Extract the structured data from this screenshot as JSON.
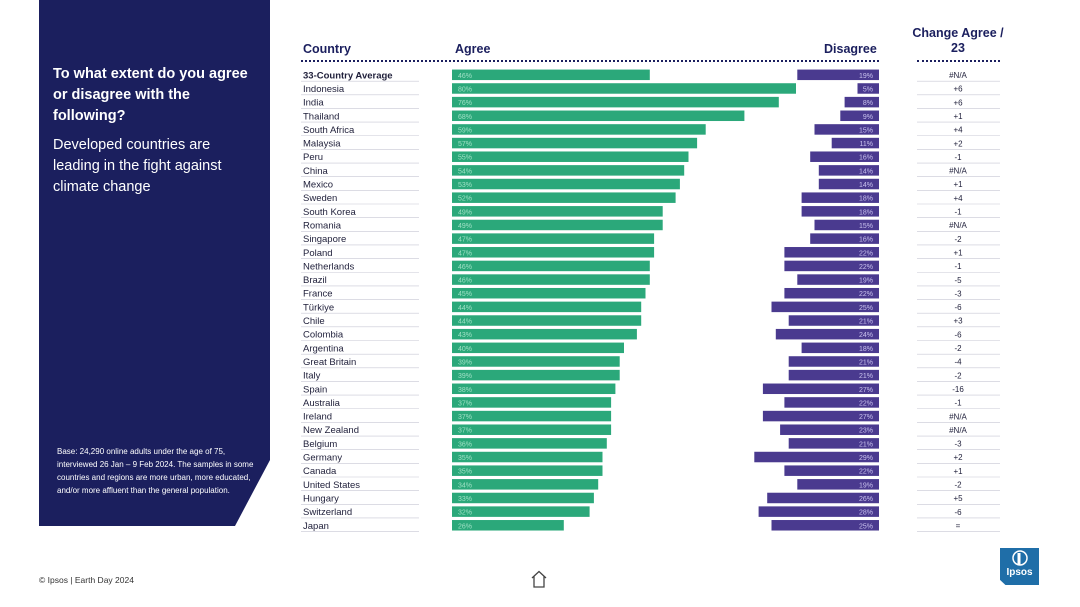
{
  "question": "To what extent do you agree or disagree with the following?",
  "statement": "Developed countries are leading in the fight against climate change",
  "base_note": "Base: 24,290 online adults under the age of 75, interviewed 26 Jan – 9 Feb 2024. The samples in some countries and regions are more urban, more educated, and/or more affluent than the general population.",
  "footer": "© Ipsos | Earth Day 2024",
  "logo_text": "Ipsos",
  "colors": {
    "agree": "#2ba87a",
    "disagree": "#4a3a8f",
    "panel": "#1b1f5e"
  },
  "chart_data": {
    "type": "bar",
    "orientation": "horizontal-diverging",
    "headers": {
      "country": "Country",
      "agree": "Agree",
      "disagree": "Disagree",
      "change": "Change Agree / 23"
    },
    "categories": [
      "33-Country Average",
      "Indonesia",
      "India",
      "Thailand",
      "South Africa",
      "Malaysia",
      "Peru",
      "China",
      "Mexico",
      "Sweden",
      "South Korea",
      "Romania",
      "Singapore",
      "Poland",
      "Netherlands",
      "Brazil",
      "France",
      "Türkiye",
      "Chile",
      "Colombia",
      "Argentina",
      "Great Britain",
      "Italy",
      "Spain",
      "Australia",
      "Ireland",
      "New Zealand",
      "Belgium",
      "Germany",
      "Canada",
      "United States",
      "Hungary",
      "Switzerland",
      "Japan"
    ],
    "series": [
      {
        "name": "Agree",
        "values": [
          46,
          80,
          76,
          68,
          59,
          57,
          55,
          54,
          53,
          52,
          49,
          49,
          47,
          47,
          46,
          46,
          45,
          44,
          44,
          43,
          40,
          39,
          39,
          38,
          37,
          37,
          37,
          36,
          35,
          35,
          34,
          33,
          32,
          26
        ]
      },
      {
        "name": "Disagree",
        "values": [
          19,
          5,
          8,
          9,
          15,
          11,
          16,
          14,
          14,
          18,
          18,
          15,
          16,
          22,
          22,
          19,
          22,
          25,
          21,
          24,
          18,
          21,
          21,
          27,
          22,
          27,
          23,
          21,
          29,
          22,
          19,
          26,
          28,
          25
        ]
      }
    ],
    "agree_labels": [
      "46%",
      "80%",
      "76%",
      "68%",
      "59%",
      "57%",
      "55%",
      "54%",
      "53%",
      "52%",
      "49%",
      "49%",
      "47%",
      "47%",
      "46%",
      "46%",
      "45%",
      "44%",
      "44%",
      "43%",
      "40%",
      "39%",
      "39%",
      "38%",
      "37%",
      "37%",
      "37%",
      "36%",
      "35%",
      "35%",
      "34%",
      "33%",
      "32%",
      "26%"
    ],
    "disagree_labels": [
      "19%",
      "5%",
      "8%",
      "9%",
      "15%",
      "11%",
      "16%",
      "14%",
      "14%",
      "18%",
      "18%",
      "15%",
      "16%",
      "22%",
      "22%",
      "19%",
      "22%",
      "25%",
      "21%",
      "24%",
      "18%",
      "21%",
      "21%",
      "27%",
      "22%",
      "27%",
      "23%",
      "21%",
      "29%",
      "22%",
      "19%",
      "26%",
      "28%",
      "25%"
    ],
    "change": [
      "#N/A",
      "+6",
      "+6",
      "+1",
      "+4",
      "+2",
      "-1",
      "#N/A",
      "+1",
      "+4",
      "-1",
      "#N/A",
      "-2",
      "+1",
      "-1",
      "-5",
      "-3",
      "-6",
      "+3",
      "-6",
      "-2",
      "-4",
      "-2",
      "-16",
      "-1",
      "#N/A",
      "#N/A",
      "-3",
      "+2",
      "+1",
      "-2",
      "+5",
      "-6",
      "="
    ],
    "xlim": [
      0,
      100
    ]
  }
}
